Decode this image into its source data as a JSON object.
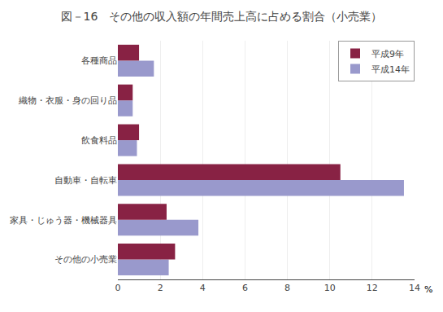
{
  "chart_data": {
    "type": "bar",
    "orientation": "horizontal",
    "title": "図－16　その他の収入額の年間売上高に占める割合（小売業）",
    "categories": [
      "その他の小売業",
      "家具・じゅう器・機械器具",
      "自動車・自転車",
      "飲食料品",
      "織物・衣服・身の回り品",
      "各種商品"
    ],
    "series": [
      {
        "name": "平成9年",
        "color": "#882244",
        "values": [
          2.7,
          2.3,
          10.5,
          1.0,
          0.7,
          1.0
        ]
      },
      {
        "name": "平成14年",
        "color": "#9999CC",
        "values": [
          2.4,
          3.8,
          13.5,
          0.9,
          0.7,
          1.7
        ]
      }
    ],
    "xlim": [
      0,
      14
    ],
    "xticks": [
      0,
      2,
      4,
      6,
      8,
      10,
      12,
      14
    ],
    "grid": true,
    "legend": "upper right",
    "annotations": [
      "%"
    ]
  }
}
